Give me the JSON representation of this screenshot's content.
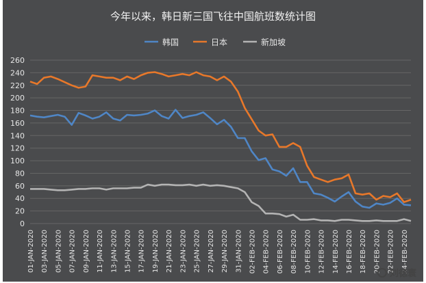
{
  "chart_data": {
    "type": "line",
    "title": "今年以来，韩日新三国飞往中国航班数统计图",
    "ylim": [
      0,
      260
    ],
    "ytick_step": 20,
    "grid": true,
    "legend_position": "top-center",
    "colors": {
      "background": "#4a4b4d",
      "grid": "#666666",
      "text": "#e6e6e6",
      "title": "#f2f2f2"
    },
    "x": [
      "01-JAN-2020",
      "02-JAN-2020",
      "03-JAN-2020",
      "04-JAN-2020",
      "05-JAN-2020",
      "06-JAN-2020",
      "07-JAN-2020",
      "08-JAN-2020",
      "09-JAN-2020",
      "10-JAN-2020",
      "11-JAN-2020",
      "12-JAN-2020",
      "13-JAN-2020",
      "14-JAN-2020",
      "15-JAN-2020",
      "16-JAN-2020",
      "17-JAN-2020",
      "18-JAN-2020",
      "19-JAN-2020",
      "20-JAN-2020",
      "21-JAN-2020",
      "22-JAN-2020",
      "23-JAN-2020",
      "24-JAN-2020",
      "25-JAN-2020",
      "26-JAN-2020",
      "27-JAN-2020",
      "28-JAN-2020",
      "29-JAN-2020",
      "30-JAN-2020",
      "31-JAN-2020",
      "01-FEB-2020",
      "02-FEB-2020",
      "03-FEB-2020",
      "04-FEB-2020",
      "05-FEB-2020",
      "06-FEB-2020",
      "07-FEB-2020",
      "08-FEB-2020",
      "09-FEB-2020",
      "10-FEB-2020",
      "11-FEB-2020",
      "12-FEB-2020",
      "13-FEB-2020",
      "14-FEB-2020",
      "15-FEB-2020",
      "16-FEB-2020",
      "17-FEB-2020",
      "18-FEB-2020",
      "19-FEB-2020",
      "20-FEB-2020",
      "21-FEB-2020",
      "22-FEB-2020",
      "23-FEB-2020",
      "24-FEB-2020",
      "25-FEB-2020"
    ],
    "tick_labels": [
      "01-JAN-2020",
      "03-JAN-2020",
      "05-JAN-2020",
      "07-JAN-2020",
      "09-JAN-2020",
      "11-JAN-2020",
      "13-JAN-2020",
      "15-JAN-2020",
      "17-JAN-2020",
      "19-JAN-2020",
      "21-JAN-2020",
      "23-JAN-2020",
      "25-JAN-2020",
      "27-JAN-2020",
      "29-JAN-2020",
      "31-JAN-2020",
      "02-FEB-2020",
      "04-FEB-2020",
      "06-FEB-2020",
      "08-FEB-2020",
      "10-FEB-2020",
      "12-FEB-2020",
      "14-FEB-2020",
      "16-FEB-2020",
      "18-FEB-2020",
      "20-FEB-2020",
      "22-FEB-2020",
      "24-FEB-2020"
    ],
    "series": [
      {
        "name": "韩国",
        "color": "#4f86c6",
        "values": [
          172,
          170,
          169,
          171,
          173,
          170,
          157,
          176,
          172,
          167,
          170,
          177,
          167,
          164,
          173,
          172,
          173,
          175,
          180,
          171,
          167,
          181,
          168,
          171,
          173,
          177,
          168,
          158,
          165,
          154,
          136,
          136,
          115,
          101,
          104,
          86,
          83,
          76,
          88,
          66,
          66,
          48,
          46,
          41,
          35,
          43,
          50,
          35,
          27,
          25,
          32,
          30,
          33,
          40,
          30,
          29
        ]
      },
      {
        "name": "日本",
        "color": "#e8782a",
        "values": [
          226,
          222,
          232,
          234,
          230,
          225,
          220,
          216,
          218,
          236,
          234,
          232,
          232,
          228,
          234,
          230,
          236,
          240,
          241,
          238,
          234,
          236,
          238,
          236,
          241,
          236,
          234,
          228,
          234,
          226,
          210,
          184,
          166,
          148,
          140,
          142,
          122,
          122,
          128,
          122,
          92,
          74,
          70,
          66,
          70,
          72,
          78,
          48,
          46,
          48,
          38,
          44,
          42,
          48,
          34,
          38
        ]
      },
      {
        "name": "新加坡",
        "color": "#b4b4b4",
        "values": [
          55,
          55,
          55,
          54,
          53,
          53,
          54,
          55,
          55,
          56,
          56,
          54,
          56,
          56,
          56,
          57,
          57,
          62,
          60,
          62,
          62,
          61,
          61,
          62,
          60,
          62,
          60,
          61,
          60,
          58,
          56,
          50,
          34,
          28,
          16,
          16,
          15,
          11,
          14,
          6,
          6,
          7,
          5,
          5,
          4,
          6,
          6,
          5,
          4,
          4,
          5,
          4,
          4,
          4,
          7,
          4
        ]
      }
    ]
  },
  "watermark": {
    "icon": "wechat-icon",
    "text": "刘德寰"
  }
}
